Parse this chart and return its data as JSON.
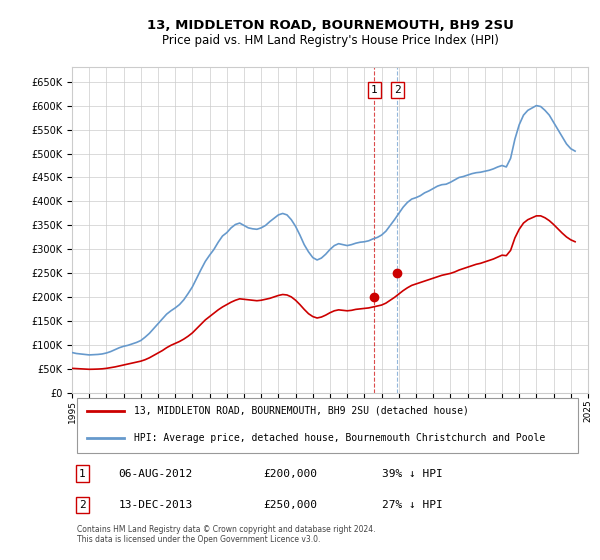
{
  "title": "13, MIDDLETON ROAD, BOURNEMOUTH, BH9 2SU",
  "subtitle": "Price paid vs. HM Land Registry's House Price Index (HPI)",
  "legend_line1": "13, MIDDLETON ROAD, BOURNEMOUTH, BH9 2SU (detached house)",
  "legend_line2": "HPI: Average price, detached house, Bournemouth Christchurch and Poole",
  "footer": "Contains HM Land Registry data © Crown copyright and database right 2024.\nThis data is licensed under the Open Government Licence v3.0.",
  "transaction1_label": "1",
  "transaction1_date": "06-AUG-2012",
  "transaction1_price": "£200,000",
  "transaction1_hpi": "39% ↓ HPI",
  "transaction2_label": "2",
  "transaction2_date": "13-DEC-2013",
  "transaction2_price": "£250,000",
  "transaction2_hpi": "27% ↓ HPI",
  "hpi_color": "#6699cc",
  "price_color": "#cc0000",
  "marker_color": "#cc0000",
  "vline_color": "#cc0000",
  "grid_color": "#cccccc",
  "bg_color": "#ffffff",
  "ylim": [
    0,
    680000
  ],
  "yticks": [
    0,
    50000,
    100000,
    150000,
    200000,
    250000,
    300000,
    350000,
    400000,
    450000,
    500000,
    550000,
    600000,
    650000
  ],
  "hpi_data": {
    "years": [
      1995.0,
      1995.25,
      1995.5,
      1995.75,
      1996.0,
      1996.25,
      1996.5,
      1996.75,
      1997.0,
      1997.25,
      1997.5,
      1997.75,
      1998.0,
      1998.25,
      1998.5,
      1998.75,
      1999.0,
      1999.25,
      1999.5,
      1999.75,
      2000.0,
      2000.25,
      2000.5,
      2000.75,
      2001.0,
      2001.25,
      2001.5,
      2001.75,
      2002.0,
      2002.25,
      2002.5,
      2002.75,
      2003.0,
      2003.25,
      2003.5,
      2003.75,
      2004.0,
      2004.25,
      2004.5,
      2004.75,
      2005.0,
      2005.25,
      2005.5,
      2005.75,
      2006.0,
      2006.25,
      2006.5,
      2006.75,
      2007.0,
      2007.25,
      2007.5,
      2007.75,
      2008.0,
      2008.25,
      2008.5,
      2008.75,
      2009.0,
      2009.25,
      2009.5,
      2009.75,
      2010.0,
      2010.25,
      2010.5,
      2010.75,
      2011.0,
      2011.25,
      2011.5,
      2011.75,
      2012.0,
      2012.25,
      2012.5,
      2012.75,
      2013.0,
      2013.25,
      2013.5,
      2013.75,
      2014.0,
      2014.25,
      2014.5,
      2014.75,
      2015.0,
      2015.25,
      2015.5,
      2015.75,
      2016.0,
      2016.25,
      2016.5,
      2016.75,
      2017.0,
      2017.25,
      2017.5,
      2017.75,
      2018.0,
      2018.25,
      2018.5,
      2018.75,
      2019.0,
      2019.25,
      2019.5,
      2019.75,
      2020.0,
      2020.25,
      2020.5,
      2020.75,
      2021.0,
      2021.25,
      2021.5,
      2021.75,
      2022.0,
      2022.25,
      2022.5,
      2022.75,
      2023.0,
      2023.25,
      2023.5,
      2023.75,
      2024.0,
      2024.25
    ],
    "values": [
      85000,
      83000,
      82000,
      81000,
      80000,
      80500,
      81000,
      82000,
      84000,
      87000,
      91000,
      95000,
      98000,
      100000,
      103000,
      106000,
      110000,
      117000,
      125000,
      135000,
      145000,
      155000,
      165000,
      172000,
      178000,
      185000,
      195000,
      208000,
      222000,
      240000,
      258000,
      275000,
      288000,
      300000,
      315000,
      328000,
      335000,
      345000,
      352000,
      355000,
      350000,
      345000,
      343000,
      342000,
      345000,
      350000,
      358000,
      365000,
      372000,
      375000,
      372000,
      362000,
      348000,
      330000,
      310000,
      295000,
      283000,
      278000,
      282000,
      290000,
      300000,
      308000,
      312000,
      310000,
      308000,
      310000,
      313000,
      315000,
      316000,
      318000,
      322000,
      325000,
      330000,
      338000,
      350000,
      362000,
      375000,
      388000,
      398000,
      405000,
      408000,
      412000,
      418000,
      422000,
      427000,
      432000,
      435000,
      436000,
      440000,
      445000,
      450000,
      452000,
      455000,
      458000,
      460000,
      461000,
      463000,
      465000,
      468000,
      472000,
      475000,
      472000,
      490000,
      530000,
      560000,
      580000,
      590000,
      595000,
      600000,
      598000,
      590000,
      580000,
      565000,
      550000,
      535000,
      520000,
      510000,
      505000
    ]
  },
  "price_data": {
    "years": [
      1995.0,
      1995.25,
      1995.5,
      1995.75,
      1996.0,
      1996.25,
      1996.5,
      1996.75,
      1997.0,
      1997.25,
      1997.5,
      1997.75,
      1998.0,
      1998.25,
      1998.5,
      1998.75,
      1999.0,
      1999.25,
      1999.5,
      1999.75,
      2000.0,
      2000.25,
      2000.5,
      2000.75,
      2001.0,
      2001.25,
      2001.5,
      2001.75,
      2002.0,
      2002.25,
      2002.5,
      2002.75,
      2003.0,
      2003.25,
      2003.5,
      2003.75,
      2004.0,
      2004.25,
      2004.5,
      2004.75,
      2005.0,
      2005.25,
      2005.5,
      2005.75,
      2006.0,
      2006.25,
      2006.5,
      2006.75,
      2007.0,
      2007.25,
      2007.5,
      2007.75,
      2008.0,
      2008.25,
      2008.5,
      2008.75,
      2009.0,
      2009.25,
      2009.5,
      2009.75,
      2010.0,
      2010.25,
      2010.5,
      2010.75,
      2011.0,
      2011.25,
      2011.5,
      2011.75,
      2012.0,
      2012.25,
      2012.5,
      2012.75,
      2013.0,
      2013.25,
      2013.5,
      2013.75,
      2014.0,
      2014.25,
      2014.5,
      2014.75,
      2015.0,
      2015.25,
      2015.5,
      2015.75,
      2016.0,
      2016.25,
      2016.5,
      2016.75,
      2017.0,
      2017.25,
      2017.5,
      2017.75,
      2018.0,
      2018.25,
      2018.5,
      2018.75,
      2019.0,
      2019.25,
      2019.5,
      2019.75,
      2020.0,
      2020.25,
      2020.5,
      2020.75,
      2021.0,
      2021.25,
      2021.5,
      2021.75,
      2022.0,
      2022.25,
      2022.5,
      2022.75,
      2023.0,
      2023.25,
      2023.5,
      2023.75,
      2024.0,
      2024.25
    ],
    "values": [
      52000,
      51500,
      51000,
      50500,
      50000,
      50200,
      50500,
      51000,
      52000,
      53500,
      55000,
      57000,
      59000,
      61000,
      63000,
      65000,
      67000,
      70000,
      74000,
      79000,
      84000,
      89000,
      95000,
      100000,
      104000,
      108000,
      113000,
      119000,
      126000,
      135000,
      144000,
      153000,
      160000,
      167000,
      174000,
      180000,
      185000,
      190000,
      194000,
      197000,
      196000,
      195000,
      194000,
      193000,
      194000,
      196000,
      198000,
      201000,
      204000,
      206000,
      205000,
      201000,
      194000,
      185000,
      175000,
      166000,
      160000,
      157000,
      159000,
      163000,
      168000,
      172000,
      174000,
      173000,
      172000,
      173000,
      175000,
      176000,
      177000,
      178000,
      180000,
      182000,
      184000,
      188000,
      194000,
      200000,
      207000,
      214000,
      220000,
      225000,
      228000,
      231000,
      234000,
      237000,
      240000,
      243000,
      246000,
      248000,
      250000,
      253000,
      257000,
      260000,
      263000,
      266000,
      269000,
      271000,
      274000,
      277000,
      280000,
      284000,
      288000,
      287000,
      298000,
      324000,
      342000,
      355000,
      362000,
      366000,
      370000,
      370000,
      366000,
      360000,
      352000,
      343000,
      334000,
      326000,
      320000,
      316000
    ]
  },
  "transaction1_x": 2012.583,
  "transaction1_y": 200000,
  "transaction2_x": 2013.917,
  "transaction2_y": 250000,
  "xmin": 1995,
  "xmax": 2025
}
